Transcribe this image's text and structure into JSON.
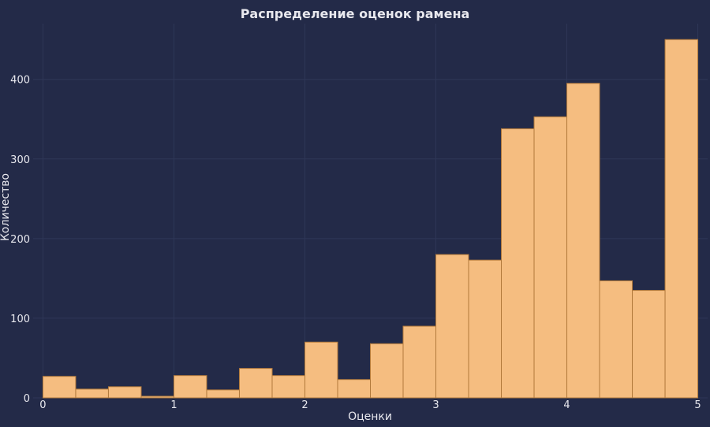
{
  "chart_data": {
    "type": "bar",
    "title": "Распределение оценок рамена",
    "xlabel": "Оценки",
    "ylabel": "Количество",
    "bin_edges": [
      0,
      0.25,
      0.5,
      0.75,
      1.0,
      1.25,
      1.5,
      1.75,
      2.0,
      2.25,
      2.5,
      2.75,
      3.0,
      3.25,
      3.5,
      3.75,
      4.0,
      4.25,
      4.5,
      4.75,
      5.0
    ],
    "values": [
      27,
      11,
      14,
      2,
      28,
      10,
      37,
      28,
      70,
      23,
      68,
      90,
      180,
      173,
      338,
      353,
      395,
      147,
      135,
      450
    ],
    "xlim": [
      -0.075,
      5.075
    ],
    "ylim": [
      0,
      470
    ],
    "xticks": [
      0,
      1,
      2,
      3,
      4,
      5
    ],
    "xtick_labels": [
      "0",
      "1",
      "2",
      "3",
      "4",
      "5"
    ],
    "yticks": [
      0,
      100,
      200,
      300,
      400
    ],
    "ytick_labels": [
      "0",
      "100",
      "200",
      "300",
      "400"
    ],
    "grid": true,
    "colors": {
      "background": "#232a48",
      "bar_fill": "#f5bd80",
      "bar_edge": "#b27a3c",
      "grid": "#2f3757",
      "text": "#e8e8ee"
    }
  }
}
